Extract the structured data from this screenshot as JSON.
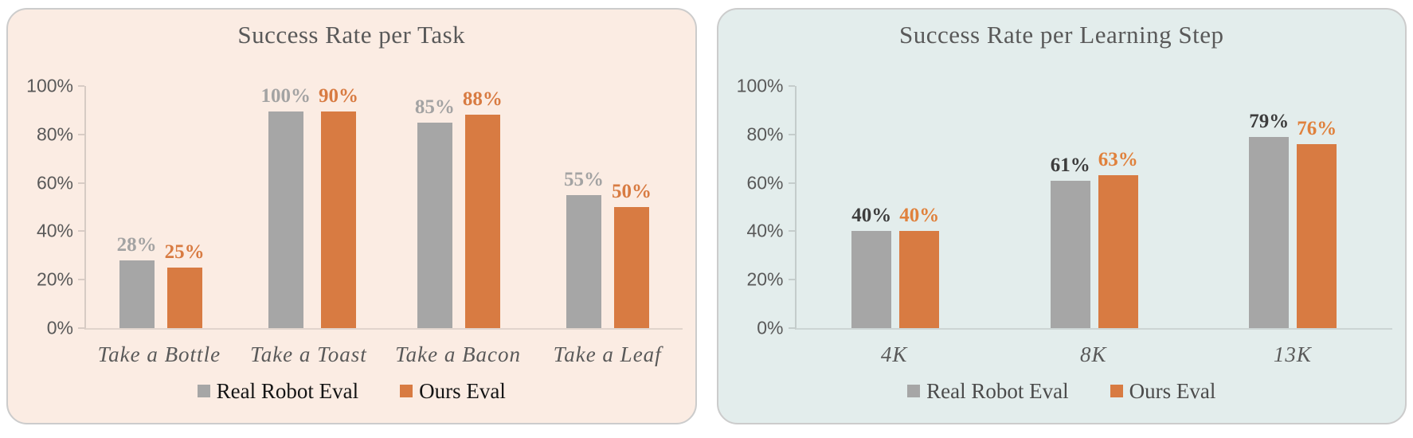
{
  "page_background": "#ffffff",
  "chart_data": [
    {
      "type": "bar",
      "title": "Success Rate per Task",
      "title_color": "#595959",
      "panel_bg": "#fbece3",
      "categories": [
        "Take a Bottle",
        "Take a Toast",
        "Take a Bacon",
        "Take a Leaf"
      ],
      "series": [
        {
          "name": "Real Robot Eval",
          "color": "#a6a6a6",
          "label_color": "#a3a3a3",
          "values": [
            28,
            100,
            85,
            55
          ]
        },
        {
          "name": "Ours Eval",
          "color": "#d87b42",
          "label_color": "#d87b42",
          "values": [
            25,
            90,
            88,
            50
          ]
        }
      ],
      "data_label_suffix": "%",
      "y_ticks": [
        0,
        20,
        40,
        60,
        80,
        100
      ],
      "y_tick_suffix": "%",
      "ylim": [
        0,
        100
      ],
      "ylabel": "",
      "xlabel": "",
      "grid": false,
      "legend_position": "bottom",
      "legend_text_color": "#141414",
      "axis_text_color": "#595959"
    },
    {
      "type": "bar",
      "title": "Success Rate per Learning Step",
      "title_color": "#595959",
      "panel_bg": "#e3edec",
      "categories": [
        "4K",
        "8K",
        "13K"
      ],
      "series": [
        {
          "name": "Real Robot Eval",
          "color": "#a6a6a6",
          "label_color": "#3d3d3d",
          "values": [
            40,
            61,
            79
          ]
        },
        {
          "name": "Ours Eval",
          "color": "#d87b42",
          "label_color": "#e0813c",
          "values": [
            40,
            63,
            76
          ]
        }
      ],
      "data_label_suffix": "%",
      "y_ticks": [
        0,
        20,
        40,
        60,
        80,
        100
      ],
      "y_tick_suffix": "%",
      "ylim": [
        0,
        100
      ],
      "ylabel": "",
      "xlabel": "",
      "grid": false,
      "legend_position": "bottom",
      "legend_text_color": "#4b4b4b",
      "axis_text_color": "#595959"
    }
  ]
}
